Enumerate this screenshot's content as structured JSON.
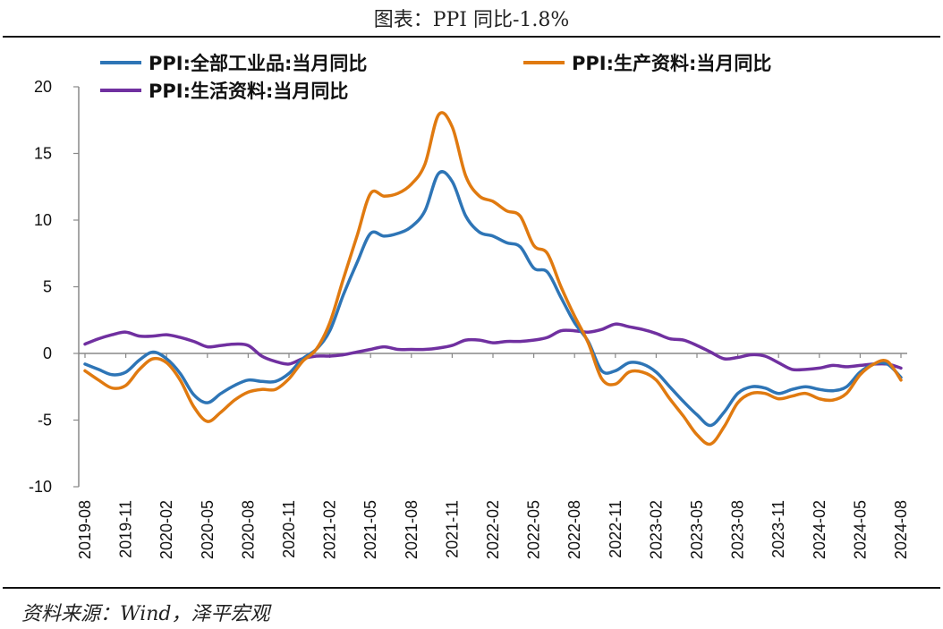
{
  "title": "图表：PPI 同比-1.8%",
  "source": "资料来源：Wind，泽平宏观",
  "chart_data": {
    "type": "line",
    "ylim": [
      -10,
      20
    ],
    "yticks": [
      "20",
      "15",
      "10",
      "5",
      "0",
      "-5",
      "-10"
    ],
    "xtick_labels": [
      "2019-08",
      "2019-11",
      "2020-02",
      "2020-05",
      "2020-08",
      "2020-11",
      "2021-02",
      "2021-05",
      "2021-08",
      "2021-11",
      "2022-02",
      "2022-05",
      "2022-08",
      "2022-11",
      "2023-02",
      "2023-05",
      "2023-08",
      "2023-11",
      "2024-02",
      "2024-05",
      "2024-08"
    ],
    "x": [
      "2019-08",
      "2019-09",
      "2019-10",
      "2019-11",
      "2019-12",
      "2020-01",
      "2020-02",
      "2020-03",
      "2020-04",
      "2020-05",
      "2020-06",
      "2020-07",
      "2020-08",
      "2020-09",
      "2020-10",
      "2020-11",
      "2020-12",
      "2021-01",
      "2021-02",
      "2021-03",
      "2021-04",
      "2021-05",
      "2021-06",
      "2021-07",
      "2021-08",
      "2021-09",
      "2021-10",
      "2021-11",
      "2021-12",
      "2022-01",
      "2022-02",
      "2022-03",
      "2022-04",
      "2022-05",
      "2022-06",
      "2022-07",
      "2022-08",
      "2022-09",
      "2022-10",
      "2022-11",
      "2022-12",
      "2023-01",
      "2023-02",
      "2023-03",
      "2023-04",
      "2023-05",
      "2023-06",
      "2023-07",
      "2023-08",
      "2023-09",
      "2023-10",
      "2023-11",
      "2023-12",
      "2024-01",
      "2024-02",
      "2024-03",
      "2024-04",
      "2024-05",
      "2024-06",
      "2024-07",
      "2024-08"
    ],
    "series": [
      {
        "name": "PPI:全部工业品:当月同比",
        "color": "#2E75B6",
        "values": [
          -0.8,
          -1.2,
          -1.6,
          -1.4,
          -0.5,
          0.1,
          -0.4,
          -1.5,
          -3.1,
          -3.7,
          -3.0,
          -2.4,
          -2.0,
          -2.1,
          -2.1,
          -1.5,
          -0.4,
          0.3,
          1.7,
          4.4,
          6.8,
          9.0,
          8.8,
          9.0,
          9.5,
          10.7,
          13.5,
          12.9,
          10.3,
          9.1,
          8.8,
          8.3,
          8.0,
          6.4,
          6.1,
          4.2,
          2.3,
          0.9,
          -1.3,
          -1.3,
          -0.7,
          -0.8,
          -1.4,
          -2.5,
          -3.6,
          -4.6,
          -5.4,
          -4.4,
          -3.0,
          -2.5,
          -2.6,
          -3.0,
          -2.7,
          -2.5,
          -2.7,
          -2.8,
          -2.5,
          -1.4,
          -0.8,
          -0.8,
          -1.8
        ]
      },
      {
        "name": "PPI:生产资料:当月同比",
        "color": "#E07A10",
        "values": [
          -1.3,
          -2.0,
          -2.6,
          -2.4,
          -1.2,
          -0.4,
          -0.7,
          -2.0,
          -4.0,
          -5.1,
          -4.4,
          -3.5,
          -2.9,
          -2.7,
          -2.7,
          -1.9,
          -0.6,
          0.3,
          2.3,
          5.6,
          8.8,
          12.0,
          11.8,
          12.0,
          12.7,
          14.2,
          17.9,
          17.0,
          13.3,
          11.8,
          11.4,
          10.7,
          10.3,
          8.1,
          7.5,
          5.0,
          2.8,
          0.8,
          -1.9,
          -2.3,
          -1.4,
          -1.4,
          -2.0,
          -3.4,
          -4.7,
          -6.1,
          -6.8,
          -5.5,
          -3.7,
          -3.0,
          -3.0,
          -3.4,
          -3.2,
          -3.0,
          -3.4,
          -3.5,
          -3.0,
          -1.6,
          -0.8,
          -0.6,
          -2.0
        ]
      },
      {
        "name": "PPI:生活资料:当月同比",
        "color": "#7030A0",
        "values": [
          0.7,
          1.1,
          1.4,
          1.6,
          1.3,
          1.3,
          1.4,
          1.2,
          0.9,
          0.5,
          0.6,
          0.7,
          0.6,
          -0.2,
          -0.6,
          -0.8,
          -0.4,
          -0.2,
          -0.2,
          -0.1,
          0.1,
          0.3,
          0.5,
          0.3,
          0.3,
          0.3,
          0.4,
          0.6,
          1.0,
          1.0,
          0.8,
          0.9,
          0.9,
          1.0,
          1.2,
          1.7,
          1.7,
          1.6,
          1.8,
          2.2,
          2.0,
          1.8,
          1.5,
          1.1,
          1.0,
          0.6,
          0.1,
          -0.4,
          -0.3,
          -0.1,
          -0.2,
          -0.7,
          -1.2,
          -1.2,
          -1.1,
          -0.9,
          -1.0,
          -0.9,
          -0.8,
          -0.8,
          -1.1
        ]
      }
    ],
    "legend_position": "top",
    "grid": false
  }
}
